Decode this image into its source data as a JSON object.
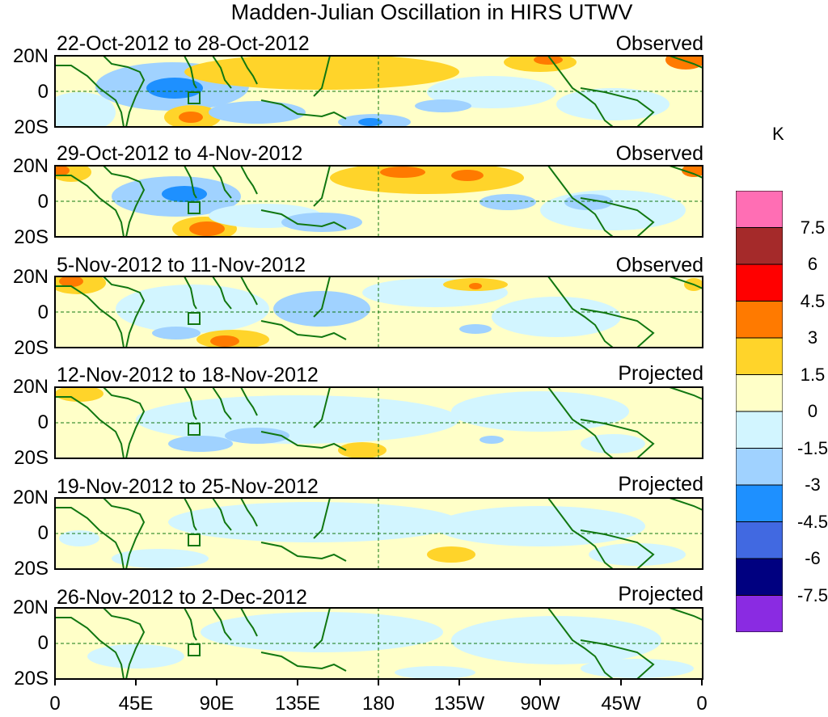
{
  "title": "Madden-Julian Oscillation in HIRS UTWV",
  "units": "K",
  "lat_labels": [
    "20N",
    "0",
    "20S"
  ],
  "lon_labels": [
    "0",
    "45E",
    "90E",
    "135E",
    "180",
    "135W",
    "90W",
    "45W",
    "0"
  ],
  "panels": [
    {
      "date_range": "22-Oct-2012 to 28-Oct-2012",
      "status": "Observed"
    },
    {
      "date_range": "29-Oct-2012 to 4-Nov-2012",
      "status": "Observed"
    },
    {
      "date_range": "5-Nov-2012 to 11-Nov-2012",
      "status": "Observed"
    },
    {
      "date_range": "12-Nov-2012 to 18-Nov-2012",
      "status": "Projected"
    },
    {
      "date_range": "19-Nov-2012 to 25-Nov-2012",
      "status": "Projected"
    },
    {
      "date_range": "26-Nov-2012 to 2-Dec-2012",
      "status": "Projected"
    }
  ],
  "colorbar": {
    "labels": [
      "7.5",
      "6",
      "4.5",
      "3",
      "1.5",
      "0",
      "-1.5",
      "-3",
      "-4.5",
      "-6",
      "-7.5"
    ],
    "colors": [
      "#ff6eb4",
      "#a52a2a",
      "#ff0000",
      "#ff7a00",
      "#ffd42a",
      "#ffffc8",
      "#d2f5ff",
      "#a0d2ff",
      "#1e90ff",
      "#4169e1",
      "#000080",
      "#8a2be2"
    ]
  },
  "colors": {
    "land_outline": "#117711",
    "background": "#ffffc8"
  }
}
